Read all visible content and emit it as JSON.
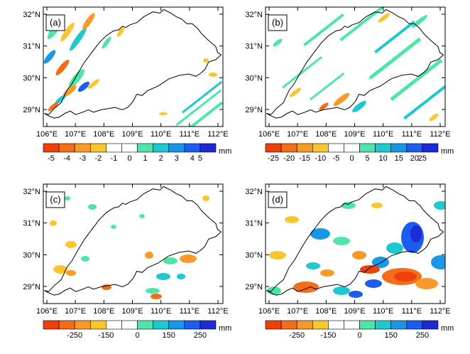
{
  "axes": {
    "lat_ticks": [
      "32°N",
      "31°N",
      "30°N",
      "29°N"
    ],
    "lon_ticks": [
      "106°E",
      "107°E",
      "108°E",
      "109°E",
      "110°E",
      "111°E",
      "112°E"
    ]
  },
  "panels": [
    {
      "label": "(a)",
      "colorbar": {
        "unit": "mm",
        "ticks": [
          "-5",
          "-4",
          "-3",
          "-2",
          "-1",
          "0",
          "1",
          "2",
          "3",
          "4",
          "5"
        ],
        "colors": [
          "#f0400a",
          "#f46e1a",
          "#f89a28",
          "#fbc52e",
          "#ffffff",
          "#ffffff",
          "#4ee6a8",
          "#1ec8d0",
          "#1a96e6",
          "#1c5cef",
          "#1e2ad8"
        ]
      }
    },
    {
      "label": "(b)",
      "colorbar": {
        "unit": "mm",
        "ticks": [
          "-25",
          "-20",
          "-15",
          "-10",
          "-5",
          "0",
          "5",
          "10",
          "15",
          "20",
          "25"
        ],
        "colors": [
          "#f0400a",
          "#f46e1a",
          "#f89a28",
          "#fbc52e",
          "#ffffff",
          "#ffffff",
          "#4ee6a8",
          "#1ec8d0",
          "#1a96e6",
          "#1c5cef",
          "#1e2ad8"
        ]
      }
    },
    {
      "label": "(c)",
      "colorbar": {
        "unit": "mm",
        "ticks": [
          "-250",
          "-150",
          "0",
          "150",
          "250"
        ],
        "colors": [
          "#f0400a",
          "#f46e1a",
          "#f89a28",
          "#fbc52e",
          "#ffffff",
          "#ffffff",
          "#4ee6a8",
          "#1ec8d0",
          "#1a96e6",
          "#1c5cef",
          "#1e2ad8"
        ]
      }
    },
    {
      "label": "(d)",
      "colorbar": {
        "unit": "mm",
        "ticks": [
          "-250",
          "-150",
          "0",
          "150",
          "250"
        ],
        "colors": [
          "#f0400a",
          "#f46e1a",
          "#f89a28",
          "#fbc52e",
          "#ffffff",
          "#ffffff",
          "#4ee6a8",
          "#1ec8d0",
          "#1a96e6",
          "#1c5cef",
          "#1e2ad8"
        ]
      }
    }
  ],
  "colors": {
    "negative_strong": "#f0400a",
    "negative_weak": "#fbc52e",
    "positive_weak": "#4ee6a8",
    "positive_strong": "#1e2ad8",
    "boundary": "#000000"
  }
}
